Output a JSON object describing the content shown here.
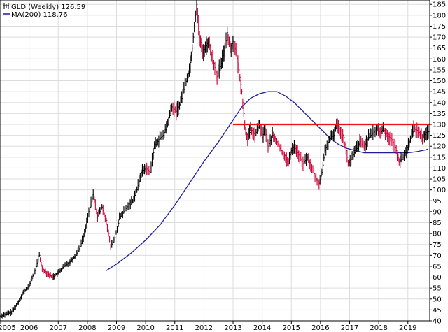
{
  "chart_data": {
    "type": "line",
    "title": "",
    "xlabel": "",
    "ylabel": "",
    "legend": {
      "placement": "top-left",
      "entries": [
        {
          "symbol": "candle-icon",
          "text": "GLD (Weekly) 126.59"
        },
        {
          "symbol": "line",
          "text": "MA(200) 118.76"
        }
      ]
    },
    "grid": true,
    "x_axis": {
      "range": [
        2005.0,
        2019.75
      ],
      "tick_labels": [
        "2005",
        "2006",
        "2007",
        "2008",
        "2009",
        "2010",
        "2011",
        "2012",
        "2013",
        "2014",
        "2015",
        "2016",
        "2017",
        "2018",
        "2019"
      ]
    },
    "y_axis": {
      "range": [
        40,
        187
      ],
      "position": "right",
      "tick_labels": [
        "40",
        "45",
        "50",
        "55",
        "60",
        "65",
        "70",
        "75",
        "80",
        "85",
        "90",
        "95",
        "100",
        "105",
        "110",
        "115",
        "120",
        "125",
        "130",
        "135",
        "140",
        "145",
        "150",
        "155",
        "160",
        "165",
        "170",
        "175",
        "180",
        "185"
      ]
    },
    "colors": {
      "price_up": "#000000",
      "price_down": "#cc0033",
      "moving_average": "#1f1f99",
      "resistance": "#ee1111",
      "grid": "#dddddd"
    },
    "series": [
      {
        "name": "GLD (Weekly)",
        "last_value": 126.59,
        "x": [
          2005.0,
          2005.2,
          2005.4,
          2005.6,
          2005.8,
          2006.0,
          2006.2,
          2006.35,
          2006.45,
          2006.6,
          2006.8,
          2007.0,
          2007.2,
          2007.4,
          2007.6,
          2007.75,
          2007.9,
          2008.05,
          2008.2,
          2008.35,
          2008.5,
          2008.65,
          2008.8,
          2008.95,
          2009.1,
          2009.25,
          2009.4,
          2009.55,
          2009.7,
          2009.85,
          2010.0,
          2010.15,
          2010.3,
          2010.45,
          2010.6,
          2010.75,
          2010.9,
          2011.05,
          2011.2,
          2011.35,
          2011.5,
          2011.6,
          2011.67,
          2011.75,
          2011.85,
          2011.95,
          2012.05,
          2012.15,
          2012.3,
          2012.45,
          2012.6,
          2012.72,
          2012.8,
          2012.9,
          2013.0,
          2013.1,
          2013.2,
          2013.3,
          2013.4,
          2013.5,
          2013.6,
          2013.75,
          2013.9,
          2014.0,
          2014.1,
          2014.2,
          2014.35,
          2014.5,
          2014.65,
          2014.8,
          2014.9,
          2015.0,
          2015.1,
          2015.25,
          2015.4,
          2015.55,
          2015.7,
          2015.85,
          2015.95,
          2016.05,
          2016.15,
          2016.3,
          2016.45,
          2016.55,
          2016.65,
          2016.8,
          2016.95,
          2017.05,
          2017.2,
          2017.35,
          2017.5,
          2017.65,
          2017.8,
          2017.95,
          2018.05,
          2018.15,
          2018.3,
          2018.45,
          2018.6,
          2018.7,
          2018.8,
          2018.95,
          2019.05,
          2019.2,
          2019.35,
          2019.5,
          2019.6,
          2019.7
        ],
        "values": [
          42,
          43,
          44,
          48,
          53,
          56,
          63,
          70,
          64,
          62,
          60,
          62,
          65,
          67,
          70,
          74,
          80,
          90,
          98,
          88,
          92,
          86,
          74,
          78,
          87,
          90,
          93,
          95,
          100,
          108,
          110,
          108,
          120,
          123,
          125,
          130,
          138,
          136,
          140,
          148,
          155,
          165,
          175,
          185,
          170,
          163,
          165,
          168,
          160,
          152,
          158,
          165,
          172,
          165,
          168,
          163,
          155,
          145,
          130,
          123,
          128,
          125,
          130,
          124,
          128,
          120,
          125,
          122,
          118,
          115,
          112,
          118,
          120,
          116,
          112,
          115,
          110,
          105,
          103,
          108,
          118,
          123,
          125,
          130,
          128,
          124,
          112,
          114,
          118,
          122,
          120,
          124,
          126,
          128,
          126,
          128,
          125,
          123,
          118,
          113,
          114,
          118,
          122,
          128,
          127,
          124,
          126,
          126.59
        ]
      },
      {
        "name": "MA(200)",
        "last_value": 118.76,
        "x": [
          2008.65,
          2009.0,
          2009.5,
          2010.0,
          2010.5,
          2011.0,
          2011.5,
          2012.0,
          2012.5,
          2013.0,
          2013.3,
          2013.6,
          2013.9,
          2014.2,
          2014.5,
          2014.8,
          2015.1,
          2015.4,
          2015.7,
          2016.0,
          2016.3,
          2016.6,
          2016.9,
          2017.2,
          2017.5,
          2017.8,
          2018.1,
          2018.4,
          2018.7,
          2019.0,
          2019.3,
          2019.6,
          2019.7
        ],
        "values": [
          63,
          66,
          71,
          77,
          84,
          93,
          103,
          113,
          122,
          132,
          138,
          142,
          144,
          145,
          145,
          143,
          140,
          136,
          132,
          128,
          124,
          121,
          119,
          118,
          117,
          117,
          117,
          117,
          117,
          117,
          117.5,
          118.3,
          118.76
        ]
      }
    ],
    "annotations": [
      {
        "type": "horizontal-line",
        "y": 130,
        "x_range": [
          2013.0,
          2019.75
        ]
      }
    ]
  }
}
